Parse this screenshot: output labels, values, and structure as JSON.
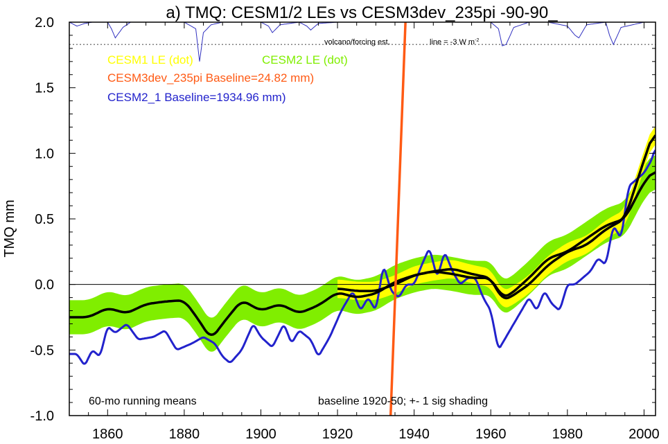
{
  "chart_data": {
    "type": "line",
    "title": "a) TMQ: CESM1/2 LEs vs CESM3dev_235pi -90-90_",
    "ylabel": "TMQ mm",
    "xlabel": "",
    "xlim": [
      1850,
      2003
    ],
    "ylim": [
      -1.0,
      2.0
    ],
    "x_ticks": [
      "1860",
      "1880",
      "1900",
      "1920",
      "1940",
      "1960",
      "1980",
      "2000"
    ],
    "y_ticks": [
      "2.0",
      "1.5",
      "1.0",
      "0.5",
      "0.0",
      "-0.5",
      "-1.0"
    ],
    "annotations": {
      "volcano_label": "volcano/forcing est.",
      "volcano_line_label": "line = -3 W m",
      "volcano_line_sup": "-2",
      "running_means": "60-mo running means",
      "baseline_note": "baseline 1920-50; +- 1 sig shading"
    },
    "legend": {
      "cesm1": "CESM1 LE (dot)",
      "cesm2": "CESM2 LE (dot)",
      "cesm3": "CESM3dev_235pi Baseline=24.82 mm)",
      "cesm2_1": "CESM2_1 Baseline=1934.96 mm)"
    },
    "colors": {
      "cesm1": "#ffff00",
      "cesm2": "#80ee00",
      "cesm3": "#ff5a14",
      "cesm2_1": "#2222cc",
      "mean": "#000000",
      "volcano": "#3030c0"
    },
    "series": [
      {
        "name": "CESM2 LE (dot)",
        "x": [
          1850,
          1855,
          1860,
          1865,
          1870,
          1875,
          1880,
          1884,
          1887,
          1890,
          1895,
          1900,
          1905,
          1910,
          1915,
          1920,
          1925,
          1930,
          1935,
          1940,
          1945,
          1950,
          1955,
          1960,
          1963,
          1965,
          1970,
          1975,
          1980,
          1985,
          1990,
          1995,
          2000,
          2003
        ],
        "values": [
          -0.25,
          -0.25,
          -0.18,
          -0.22,
          -0.15,
          -0.13,
          -0.12,
          -0.28,
          -0.42,
          -0.3,
          -0.12,
          -0.2,
          -0.15,
          -0.22,
          -0.16,
          -0.06,
          -0.1,
          -0.07,
          0.02,
          0.07,
          0.1,
          0.08,
          0.05,
          0.05,
          -0.1,
          -0.08,
          0.05,
          0.2,
          0.25,
          0.35,
          0.45,
          0.5,
          0.78,
          0.88
        ],
        "sigma": 0.13
      },
      {
        "name": "CESM1 LE (dot)",
        "x": [
          1920,
          1925,
          1930,
          1935,
          1940,
          1945,
          1950,
          1955,
          1960,
          1963,
          1965,
          1970,
          1975,
          1980,
          1985,
          1990,
          1995,
          2000,
          2003
        ],
        "values": [
          -0.03,
          -0.05,
          -0.05,
          0.0,
          0.07,
          0.1,
          0.12,
          0.08,
          0.05,
          -0.12,
          -0.1,
          0.0,
          0.15,
          0.25,
          0.3,
          0.42,
          0.5,
          0.95,
          1.2
        ],
        "sigma": 0.07
      },
      {
        "name": "CESM2_1 Baseline=1934.96 mm)",
        "x": [
          1850,
          1852,
          1854,
          1856,
          1858,
          1860,
          1862,
          1865,
          1868,
          1872,
          1875,
          1878,
          1882,
          1885,
          1888,
          1890,
          1892,
          1895,
          1898,
          1900,
          1903,
          1906,
          1908,
          1910,
          1913,
          1915,
          1918,
          1921,
          1924,
          1926,
          1928,
          1930,
          1932,
          1934,
          1936,
          1938,
          1940,
          1942,
          1944,
          1946,
          1948,
          1950,
          1952,
          1954,
          1956,
          1958,
          1960,
          1962,
          1964,
          1966,
          1968,
          1970,
          1972,
          1974,
          1976,
          1978,
          1980,
          1982,
          1984,
          1986,
          1988,
          1990,
          1992,
          1994,
          1996,
          1998,
          2000,
          2002,
          2003
        ],
        "values": [
          -0.53,
          -0.53,
          -0.62,
          -0.5,
          -0.55,
          -0.32,
          -0.37,
          -0.3,
          -0.42,
          -0.4,
          -0.35,
          -0.5,
          -0.45,
          -0.4,
          -0.45,
          -0.55,
          -0.6,
          -0.5,
          -0.3,
          -0.4,
          -0.48,
          -0.3,
          -0.45,
          -0.35,
          -0.42,
          -0.55,
          -0.4,
          -0.2,
          -0.05,
          -0.2,
          -0.1,
          -0.2,
          0.15,
          -0.05,
          -0.1,
          0.0,
          0.0,
          0.15,
          0.28,
          0.05,
          0.25,
          0.1,
          0.0,
          0.05,
          0.05,
          -0.1,
          -0.2,
          -0.5,
          -0.4,
          -0.3,
          -0.2,
          -0.1,
          -0.2,
          -0.05,
          -0.15,
          -0.2,
          0.0,
          0.0,
          0.05,
          0.1,
          0.2,
          0.15,
          0.45,
          0.35,
          0.75,
          0.8,
          0.85,
          0.95,
          1.05
        ]
      },
      {
        "name": "CESM3dev_235pi Baseline=24.82 mm)",
        "x": [
          1933.8,
          1937.8
        ],
        "values": [
          -1.05,
          2.05
        ]
      }
    ],
    "volcano_forcing": {
      "x": [
        1850,
        1852,
        1854,
        1856,
        1858,
        1860,
        1861,
        1862,
        1864,
        1866,
        1870,
        1875,
        1880,
        1883,
        1884,
        1885,
        1887,
        1890,
        1895,
        1900,
        1902,
        1903,
        1905,
        1910,
        1912,
        1913,
        1915,
        1920,
        1930,
        1940,
        1945,
        1950,
        1955,
        1960,
        1962,
        1963,
        1964,
        1966,
        1970,
        1975,
        1980,
        1982,
        1983,
        1985,
        1990,
        1991,
        1992,
        1994,
        2000,
        2003
      ],
      "depth": [
        0.0,
        0.03,
        0.01,
        0.0,
        0.0,
        0.0,
        0.05,
        0.12,
        0.04,
        0.0,
        0.0,
        0.0,
        0.0,
        0.05,
        0.3,
        0.08,
        0.02,
        0.0,
        0.0,
        0.0,
        0.03,
        0.08,
        0.02,
        0.0,
        0.03,
        0.06,
        0.01,
        0.0,
        0.0,
        0.0,
        0.0,
        0.0,
        0.0,
        0.0,
        0.05,
        0.18,
        0.17,
        0.04,
        0.0,
        0.0,
        0.03,
        0.1,
        0.12,
        0.02,
        0.0,
        0.1,
        0.17,
        0.04,
        0.0,
        0.0
      ],
      "threshold": 0.17
    }
  }
}
